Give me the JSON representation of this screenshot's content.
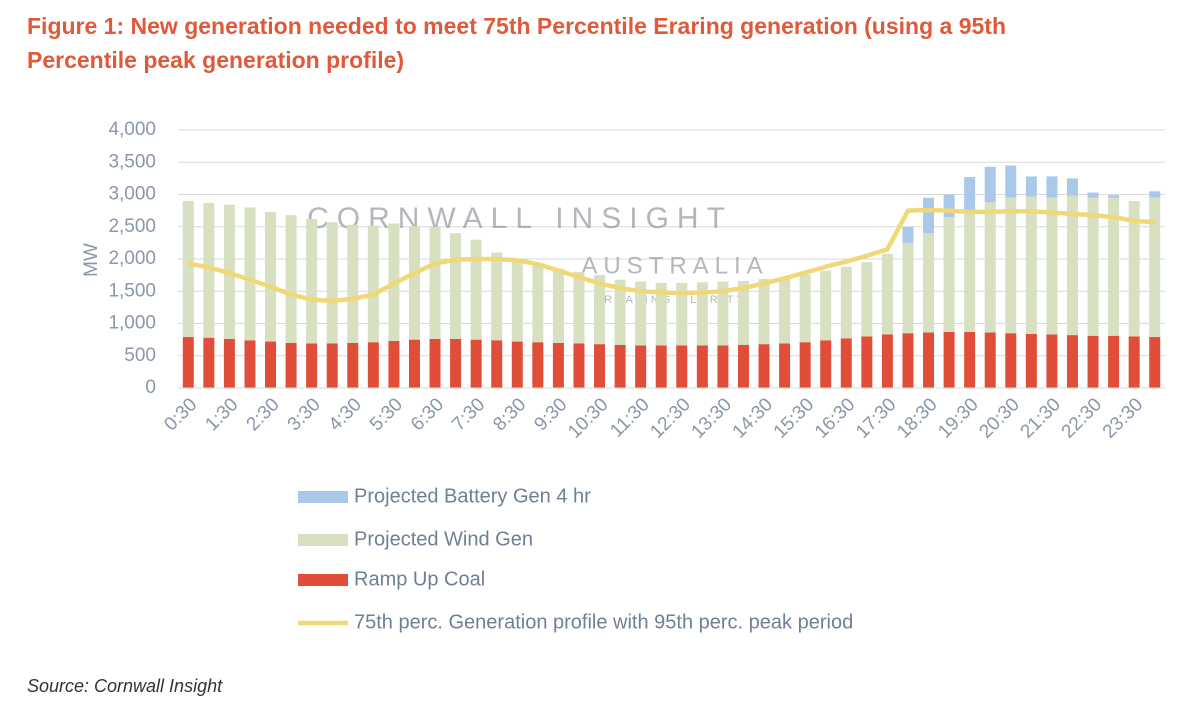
{
  "chart_data": {
    "type": "bar",
    "title": "Figure 1: New generation needed to meet 75th Percentile Eraring generation (using a 95th Percentile peak generation profile)",
    "y_label": "MW",
    "source": "Source: Cornwall Insight",
    "watermark": [
      "CORNWALL INSIGHT",
      "AUSTRALIA",
      "CREATING CLARITY"
    ],
    "categories": [
      "0:30",
      null,
      "1:30",
      null,
      "2:30",
      null,
      "3:30",
      null,
      "4:30",
      null,
      "5:30",
      null,
      "6:30",
      null,
      "7:30",
      null,
      "8:30",
      null,
      "9:30",
      null,
      "10:30",
      null,
      "11:30",
      null,
      "12:30",
      null,
      "13:30",
      null,
      "14:30",
      null,
      "15:30",
      null,
      "16:30",
      null,
      "17:30",
      null,
      "18:30",
      null,
      "19:30",
      null,
      "20:30",
      null,
      "21:30",
      null,
      "22:30",
      null,
      "23:30",
      null
    ],
    "ylim": [
      0,
      4000
    ],
    "yticks": [
      0,
      500,
      {
        "value": 1000,
        "label": "1,000"
      },
      {
        "value": 1500,
        "label": "1,500"
      },
      {
        "value": 2000,
        "label": "2,000"
      },
      {
        "value": 2500,
        "label": "2,500"
      },
      {
        "value": 3000,
        "label": "3,000"
      },
      {
        "value": 3500,
        "label": "3,500"
      },
      {
        "value": 4000,
        "label": "4,000"
      }
    ],
    "grid": true,
    "stacked": true,
    "series": [
      {
        "name": "Projected Battery Gen 4 hr",
        "color": "#a9c8ea",
        "values": [
          0,
          0,
          0,
          0,
          0,
          0,
          0,
          0,
          0,
          0,
          0,
          0,
          0,
          0,
          0,
          0,
          0,
          0,
          0,
          0,
          0,
          0,
          0,
          0,
          0,
          0,
          0,
          0,
          0,
          0,
          0,
          0,
          0,
          0,
          0,
          250,
          550,
          350,
          520,
          550,
          500,
          310,
          330,
          270,
          80,
          40,
          0,
          100
        ]
      },
      {
        "name": "Projected Wind Gen",
        "color": "#d7e0c1",
        "values": [
          2110,
          2090,
          2080,
          2060,
          2010,
          1980,
          1930,
          1880,
          1830,
          1810,
          1820,
          1760,
          1740,
          1640,
          1550,
          1360,
          1280,
          1190,
          1150,
          1110,
          1070,
          1010,
          990,
          970,
          970,
          980,
          990,
          990,
          1010,
          1030,
          1050,
          1080,
          1110,
          1150,
          1250,
          1400,
          1540,
          1780,
          1880,
          2020,
          2100,
          2130,
          2120,
          2160,
          2140,
          2140,
          2100,
          2160
        ]
      },
      {
        "name": "Ramp Up Coal",
        "color": "#e04e39",
        "values": [
          790,
          780,
          760,
          740,
          720,
          700,
          690,
          690,
          700,
          710,
          730,
          750,
          760,
          760,
          750,
          740,
          720,
          710,
          700,
          690,
          680,
          670,
          660,
          660,
          660,
          660,
          660,
          670,
          680,
          690,
          710,
          740,
          770,
          800,
          830,
          850,
          860,
          870,
          870,
          860,
          850,
          840,
          830,
          820,
          810,
          810,
          800,
          790
        ]
      },
      {
        "name": "75th perc. Generation profile with 95th perc. peak period",
        "color": "#f0d877",
        "type": "line",
        "values": [
          1930,
          1870,
          1780,
          1680,
          1570,
          1450,
          1370,
          1350,
          1380,
          1450,
          1620,
          1780,
          1930,
          1990,
          2000,
          2000,
          1980,
          1920,
          1820,
          1720,
          1620,
          1550,
          1500,
          1480,
          1470,
          1480,
          1500,
          1550,
          1620,
          1700,
          1790,
          1880,
          1960,
          2050,
          2150,
          2750,
          2760,
          2750,
          2730,
          2730,
          2740,
          2740,
          2720,
          2700,
          2680,
          2650,
          2590,
          2570
        ]
      }
    ]
  }
}
